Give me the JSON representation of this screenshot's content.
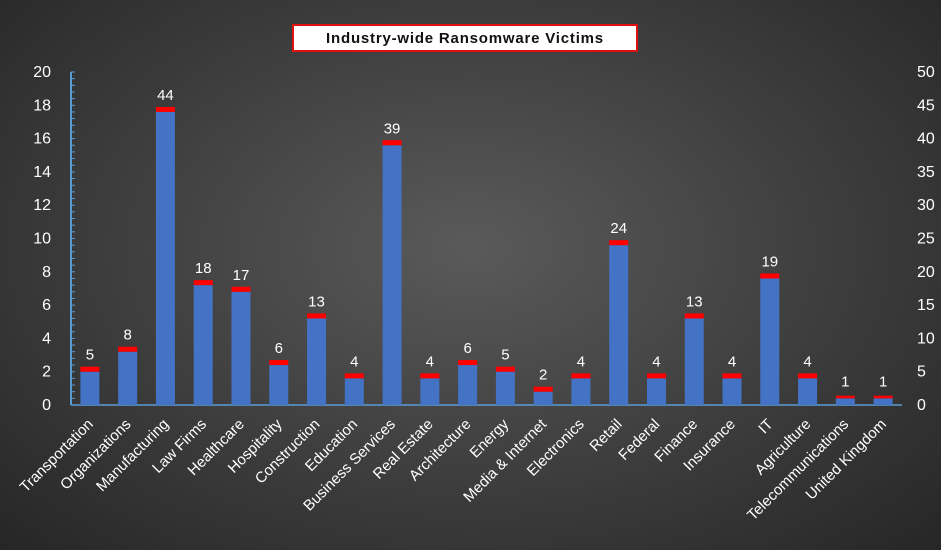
{
  "chart_data": {
    "type": "bar",
    "title": "Industry-wide Ransomware Victims",
    "categories": [
      "Transportation",
      "Organizations",
      "Manufacturing",
      "Law Firms",
      "Healthcare",
      "Hospitality",
      "Construction",
      "Education",
      "Business Services",
      "Real Estate",
      "Architecture",
      "Energy",
      "Media & Internet",
      "Electronics",
      "Retail",
      "Federal",
      "Finance",
      "Insurance",
      "IT",
      "Agriculture",
      "Telecommunications",
      "United Kingdom"
    ],
    "values": [
      5,
      8,
      44,
      18,
      17,
      6,
      13,
      4,
      39,
      4,
      6,
      5,
      2,
      4,
      24,
      4,
      13,
      4,
      19,
      4,
      1,
      1
    ],
    "data_labels": [
      "5",
      "8",
      "44",
      "18",
      "17",
      "6",
      "13",
      "4",
      "39",
      "4",
      "6",
      "5",
      "2",
      "4",
      "24",
      "4",
      "13",
      "4",
      "19",
      "4",
      "1",
      "1"
    ],
    "ylim_left": [
      0,
      20
    ],
    "yticks_left": [
      "0",
      "2",
      "4",
      "6",
      "8",
      "10",
      "12",
      "14",
      "16",
      "18",
      "20"
    ],
    "ylim_right": [
      0,
      50
    ],
    "yticks_right": [
      "0",
      "5",
      "10",
      "15",
      "20",
      "25",
      "30",
      "35",
      "40",
      "45",
      "50"
    ],
    "bar_color": "#4472c4",
    "cap_color": "#ff0000",
    "legend": "none",
    "grid": false
  }
}
